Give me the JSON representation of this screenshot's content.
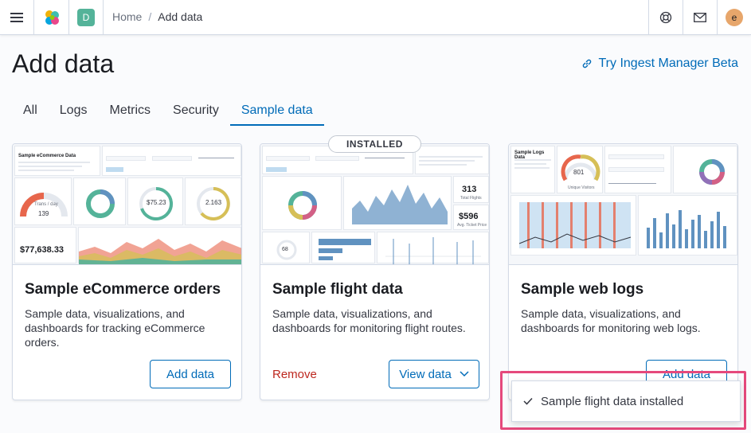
{
  "header": {
    "space_initial": "D",
    "breadcrumbs": [
      "Home",
      "Add data"
    ],
    "avatar_initial": "e"
  },
  "page": {
    "title": "Add data",
    "ingest_link": "Try Ingest Manager Beta"
  },
  "tabs": [
    {
      "label": "All",
      "active": false
    },
    {
      "label": "Logs",
      "active": false
    },
    {
      "label": "Metrics",
      "active": false
    },
    {
      "label": "Security",
      "active": false
    },
    {
      "label": "Sample data",
      "active": true
    }
  ],
  "cards": [
    {
      "title": "Sample eCommerce orders",
      "description": "Sample data, visualizations, and dashboards for tracking eCommerce orders.",
      "button": "Add data",
      "preview": {
        "heading": "Sample eCommerce Data",
        "gauge_label": "Trans / day",
        "gauge_value": "139",
        "price": "$75.23",
        "units": "2.163",
        "revenue": "$77,638.33"
      }
    },
    {
      "title": "Sample flight data",
      "description": "Sample data, visualizations, and dashboards for monitoring flight routes.",
      "badge": "INSTALLED",
      "remove": "Remove",
      "button": "View data",
      "preview": {
        "total_flights": "313",
        "total_flights_label": "Total Flights",
        "avg_price": "$596",
        "avg_price_label": "Avg. Ticket Price",
        "delays": "68"
      }
    },
    {
      "title": "Sample web logs",
      "description": "Sample data, visualizations, and dashboards for monitoring web logs.",
      "button": "Add data",
      "preview": {
        "heading": "Sample Logs Data",
        "gauge_value": "801",
        "gauge_label": "Unique Visitors"
      }
    }
  ],
  "toast": {
    "message": "Sample flight data installed"
  },
  "colors": {
    "accent": "#006bb8",
    "danger": "#bd271e",
    "highlight": "#e5497c"
  }
}
